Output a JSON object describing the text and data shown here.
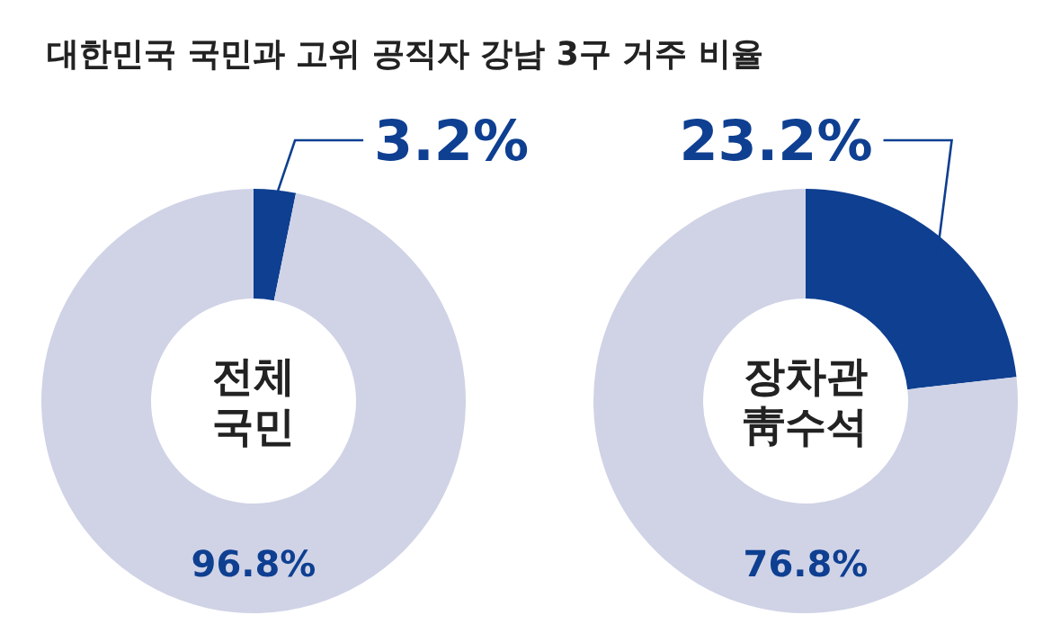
{
  "chart_data": [
    {
      "type": "donut",
      "title": "대한민국 국민과 고위 공직자 강남 3구 거주 비율",
      "annotations": [
        "전체\n국민"
      ],
      "categories": [
        null,
        null
      ],
      "values": [
        3.2,
        96.8
      ],
      "colors": [
        "#0e3f91",
        "#d0d3e6"
      ],
      "value_labels": [
        "3.2%",
        "96.8%"
      ]
    },
    {
      "type": "donut",
      "annotations": [
        "장차관\n靑수석"
      ],
      "categories": [
        null,
        null
      ],
      "values": [
        23.2,
        76.8
      ],
      "colors": [
        "#0e3f91",
        "#d0d3e6"
      ],
      "value_labels": [
        "23.2%",
        "76.8%"
      ]
    }
  ]
}
